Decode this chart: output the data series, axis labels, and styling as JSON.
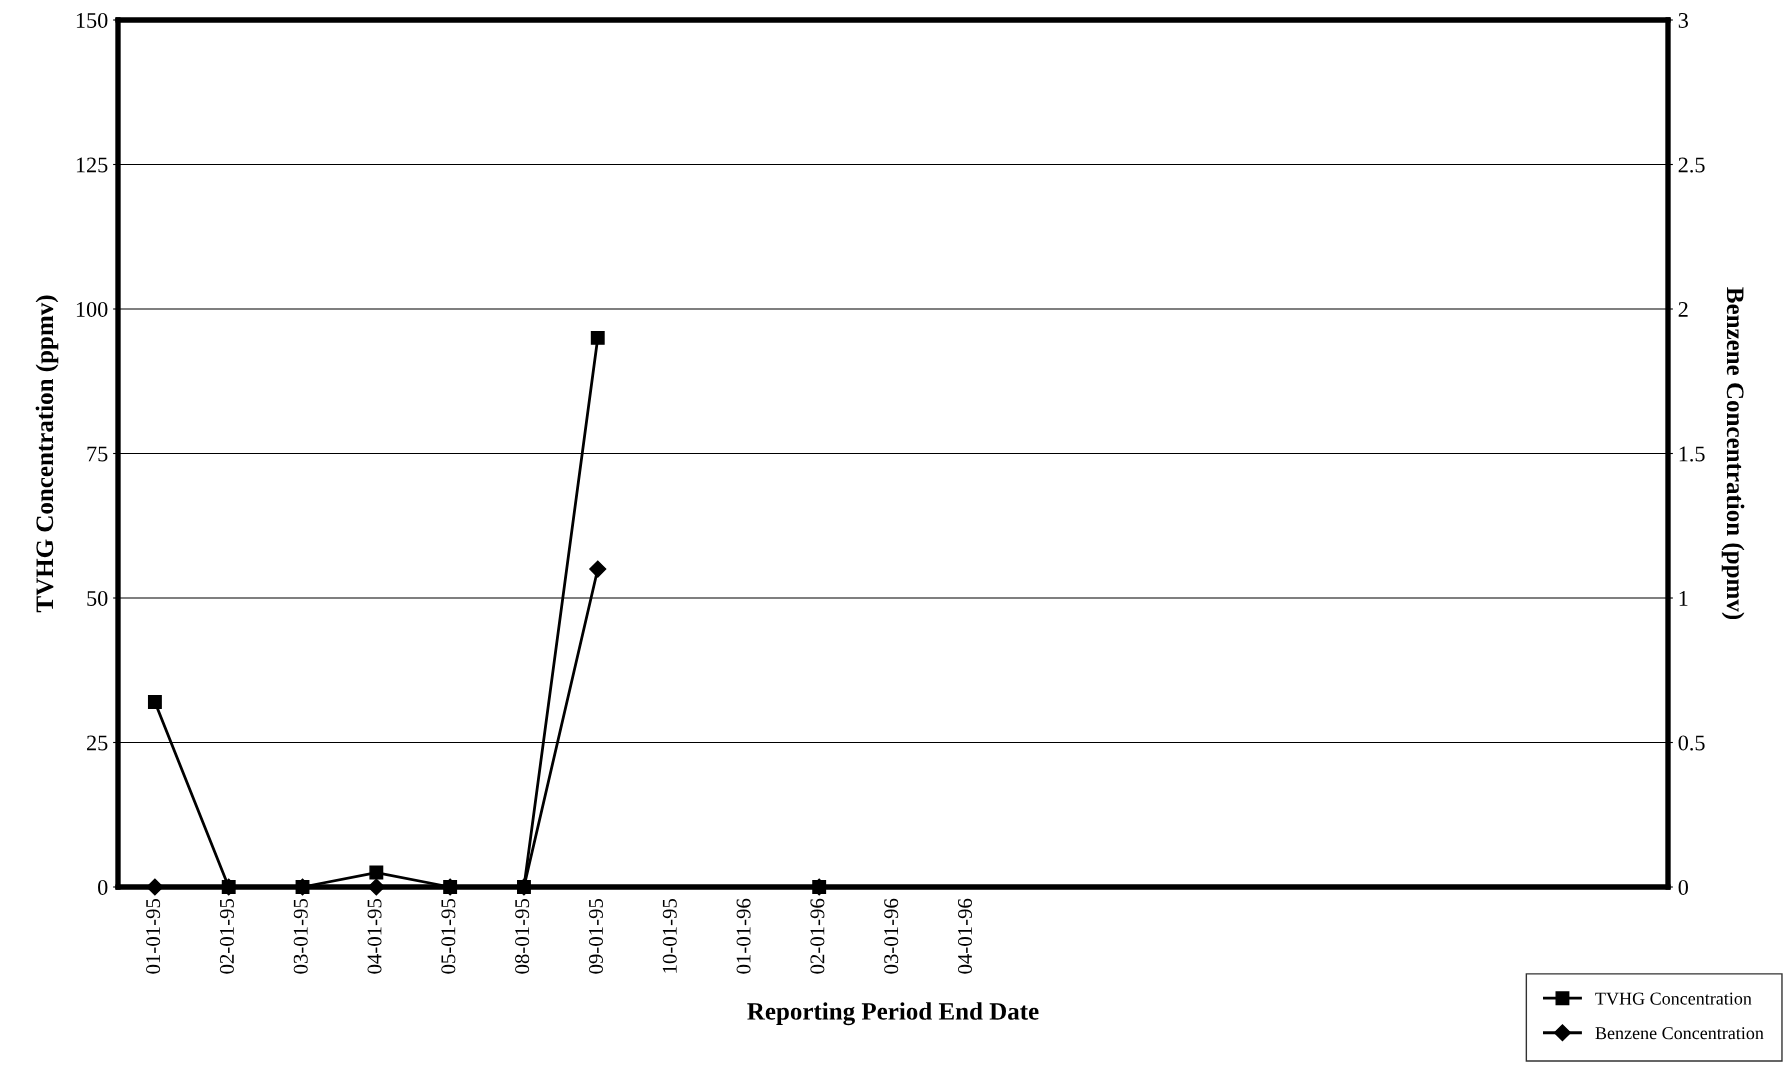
{
  "chart_data": {
    "type": "line",
    "xlabel": "Reporting Period End Date",
    "ylabel": "TVHG Concentration (ppmv)",
    "y2label": "Benzene Concentration (ppmv)",
    "categories": [
      "01-01-95",
      "02-01-95",
      "03-01-95",
      "04-01-95",
      "05-01-95",
      "08-01-95",
      "09-01-95",
      "10-01-95",
      "01-01-96",
      "02-01-96",
      "03-01-96",
      "04-01-96",
      null,
      null,
      null,
      null,
      null,
      null,
      null,
      null,
      null
    ],
    "series": [
      {
        "name": "TVHG Concentration",
        "color": "#000000",
        "marker": "square",
        "values": [
          32,
          0,
          0,
          2.5,
          0,
          0,
          95,
          null,
          null,
          0,
          null,
          null,
          null,
          null,
          null,
          null,
          null,
          null,
          null,
          null,
          null
        ]
      },
      {
        "name": "Benzene Concentration",
        "color": "#000000",
        "marker": "diamond",
        "axis": "y2",
        "values": [
          0,
          0,
          0,
          0,
          0,
          0,
          1.1,
          null,
          null,
          0,
          null,
          null,
          null,
          null,
          null,
          null,
          null,
          null,
          null,
          null,
          null
        ]
      }
    ],
    "ylim": [
      0,
      150
    ],
    "yticks": [
      0,
      25,
      50,
      75,
      100,
      125,
      150
    ],
    "y2lim": [
      0,
      3
    ],
    "y2ticks": [
      0,
      0.5,
      1,
      1.5,
      2,
      2.5,
      3
    ],
    "grid": "y",
    "legend": "bottom right",
    "line_style": "solid"
  }
}
